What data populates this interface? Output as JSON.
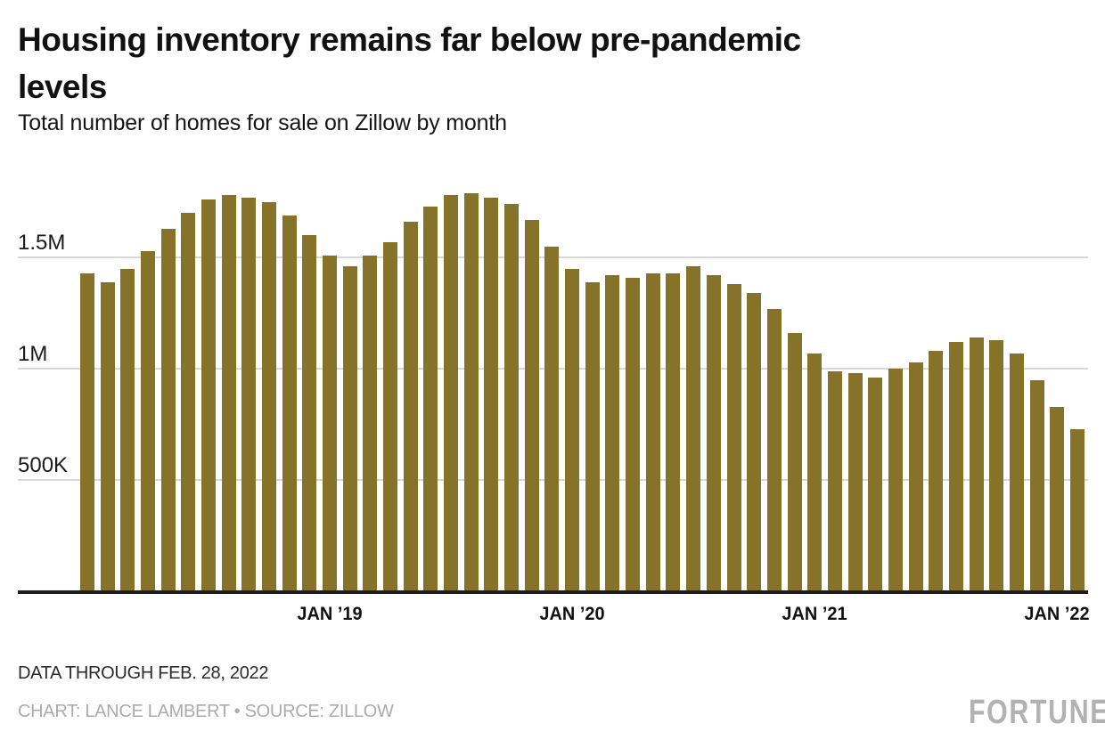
{
  "header": {
    "title_line1": "Housing inventory remains far below pre-pandemic",
    "title_line2": "levels",
    "subtitle": "Total number of homes for sale on Zillow by month"
  },
  "footer": {
    "note": "DATA THROUGH FEB. 28, 2022",
    "credit": "CHART: LANCE LAMBERT • SOURCE: ZILLOW",
    "brand": "FORTUNE"
  },
  "chart_data": {
    "type": "bar",
    "title": "Housing inventory remains far below pre-pandemic levels",
    "subtitle": "Total number of homes for sale on Zillow by month",
    "unit": "homes for sale, millions",
    "bar_color": "#87722a",
    "grid_color": "#d8d8d8",
    "axis_color": "#1d1d1d",
    "ylim": [
      0,
      1.875
    ],
    "grid": true,
    "legend": "none",
    "y_ticks": [
      {
        "value": 1.5,
        "label": "1.5M"
      },
      {
        "value": 1.0,
        "label": "1M"
      },
      {
        "value": 0.5,
        "label": "500K"
      }
    ],
    "x_ticks": [
      {
        "index": 12,
        "label": "JAN ’19"
      },
      {
        "index": 24,
        "label": "JAN ’20"
      },
      {
        "index": 36,
        "label": "JAN ’21"
      },
      {
        "index": 48,
        "label": "JAN ’22"
      }
    ],
    "categories": [
      "Jan 2018",
      "Feb 2018",
      "Mar 2018",
      "Apr 2018",
      "May 2018",
      "Jun 2018",
      "Jul 2018",
      "Aug 2018",
      "Sep 2018",
      "Oct 2018",
      "Nov 2018",
      "Dec 2018",
      "Jan 2019",
      "Feb 2019",
      "Mar 2019",
      "Apr 2019",
      "May 2019",
      "Jun 2019",
      "Jul 2019",
      "Aug 2019",
      "Sep 2019",
      "Oct 2019",
      "Nov 2019",
      "Dec 2019",
      "Jan 2020",
      "Feb 2020",
      "Mar 2020",
      "Apr 2020",
      "May 2020",
      "Jun 2020",
      "Jul 2020",
      "Aug 2020",
      "Sep 2020",
      "Oct 2020",
      "Nov 2020",
      "Dec 2020",
      "Jan 2021",
      "Feb 2021",
      "Mar 2021",
      "Apr 2021",
      "May 2021",
      "Jun 2021",
      "Jul 2021",
      "Aug 2021",
      "Sep 2021",
      "Oct 2021",
      "Nov 2021",
      "Dec 2021",
      "Jan 2022",
      "Feb 2022"
    ],
    "values": [
      1.43,
      1.39,
      1.45,
      1.53,
      1.63,
      1.7,
      1.76,
      1.78,
      1.77,
      1.75,
      1.69,
      1.6,
      1.51,
      1.46,
      1.51,
      1.57,
      1.66,
      1.73,
      1.78,
      1.79,
      1.77,
      1.74,
      1.67,
      1.55,
      1.45,
      1.39,
      1.42,
      1.41,
      1.43,
      1.43,
      1.46,
      1.42,
      1.38,
      1.34,
      1.27,
      1.16,
      1.07,
      0.99,
      0.98,
      0.96,
      1.0,
      1.03,
      1.08,
      1.12,
      1.14,
      1.13,
      1.07,
      0.95,
      0.83,
      0.73
    ]
  }
}
